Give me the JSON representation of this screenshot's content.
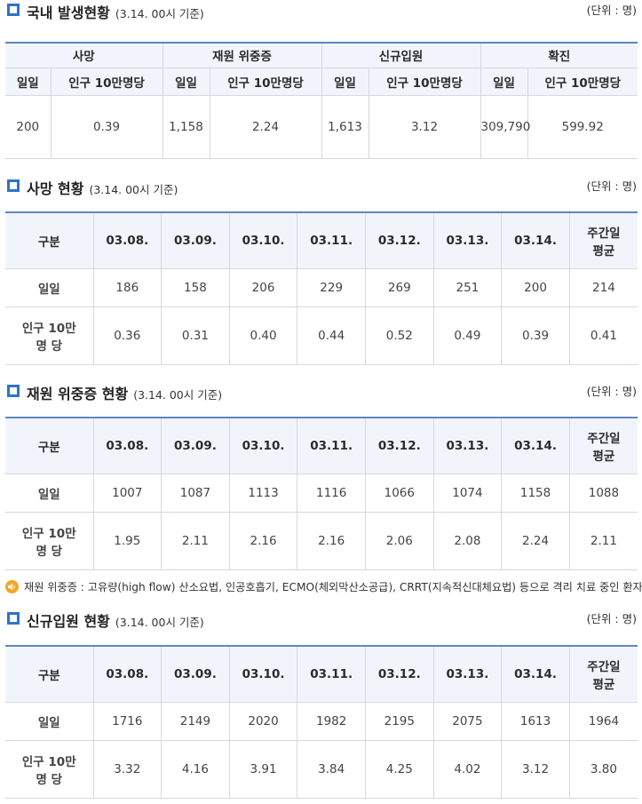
{
  "sections": {
    "domestic": {
      "title": "국내 발생현황",
      "basis": "(3.14. 00시 기준)",
      "unit": "(단위 : 명)"
    },
    "death": {
      "title": "사망 현황",
      "basis": "(3.14. 00시 기준)",
      "unit": "(단위 : 명)"
    },
    "severe": {
      "title": "재원 위중증 현황",
      "basis": "(3.14. 00시 기준)",
      "unit": "(단위 : 명)"
    },
    "admission": {
      "title": "신규입원 현황",
      "basis": "(3.14. 00시 기준)",
      "unit": "(단위 : 명)"
    }
  },
  "summary": {
    "groups": [
      "사망",
      "재원 위중증",
      "신규입원",
      "확진"
    ],
    "sub_daily": "일일",
    "sub_per100k": "인구 10만명당",
    "values": [
      {
        "daily": "200",
        "per100k": "0.39"
      },
      {
        "daily": "1,158",
        "per100k": "2.24"
      },
      {
        "daily": "1,613",
        "per100k": "3.12"
      },
      {
        "daily": "309,790",
        "per100k": "599.92"
      }
    ]
  },
  "common": {
    "label_category": "구분",
    "dates": [
      "03.08.",
      "03.09.",
      "03.10.",
      "03.11.",
      "03.12.",
      "03.13.",
      "03.14."
    ],
    "weekly_avg": [
      "주간일",
      "평균"
    ],
    "row_daily": "일일",
    "row_per100k": [
      "인구 10만",
      "명 당"
    ]
  },
  "death_table": {
    "daily": [
      "186",
      "158",
      "206",
      "229",
      "269",
      "251",
      "200",
      "214"
    ],
    "per100k": [
      "0.36",
      "0.31",
      "0.40",
      "0.44",
      "0.52",
      "0.49",
      "0.39",
      "0.41"
    ]
  },
  "severe_table": {
    "daily": [
      "1007",
      "1087",
      "1113",
      "1116",
      "1066",
      "1074",
      "1158",
      "1088"
    ],
    "per100k": [
      "1.95",
      "2.11",
      "2.16",
      "2.16",
      "2.06",
      "2.08",
      "2.24",
      "2.11"
    ]
  },
  "admission_table": {
    "daily": [
      "1716",
      "2149",
      "2020",
      "1982",
      "2195",
      "2075",
      "1613",
      "1964"
    ],
    "per100k": [
      "3.32",
      "4.16",
      "3.91",
      "3.84",
      "4.25",
      "4.02",
      "3.12",
      "3.80"
    ]
  },
  "note": {
    "icon": "speaker-icon",
    "text": "재원 위중증 : 고유량(high flow) 산소요법, 인공호흡기, ECMO(체외막산소공급), CRRT(지속적신대체요법) 등으로 격리 치료 중인 환자",
    "icon_color": "#f5a623"
  },
  "colors": {
    "accent": "#2e74c5",
    "header_bg": "#f1f5fb",
    "border": "#d3d9e2"
  }
}
